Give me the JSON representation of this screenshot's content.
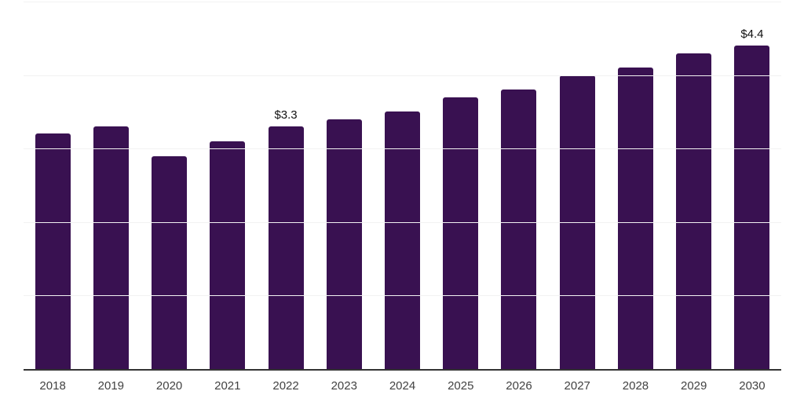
{
  "chart": {
    "background": "#ffffff",
    "bar_color": "#391151",
    "grid_color": "#f2f2f2",
    "axis_color": "#333333",
    "tick_label_color": "#424242",
    "value_label_color": "#111111"
  },
  "chart_data": {
    "type": "bar",
    "title": "",
    "xlabel": "",
    "ylabel": "",
    "categories": [
      "2018",
      "2019",
      "2020",
      "2021",
      "2022",
      "2023",
      "2024",
      "2025",
      "2026",
      "2027",
      "2028",
      "2029",
      "2030"
    ],
    "values": [
      3.2,
      3.3,
      2.9,
      3.1,
      3.3,
      3.4,
      3.5,
      3.7,
      3.8,
      4.0,
      4.1,
      4.3,
      4.4
    ],
    "point_labels": [
      "",
      "",
      "",
      "",
      "$3.3",
      "",
      "",
      "",
      "",
      "",
      "",
      "",
      "$4.4"
    ],
    "ylim": [
      0,
      5
    ],
    "gridline_values": [
      1,
      2,
      3,
      4,
      5
    ],
    "grid": "horizontal",
    "legend": "none"
  }
}
